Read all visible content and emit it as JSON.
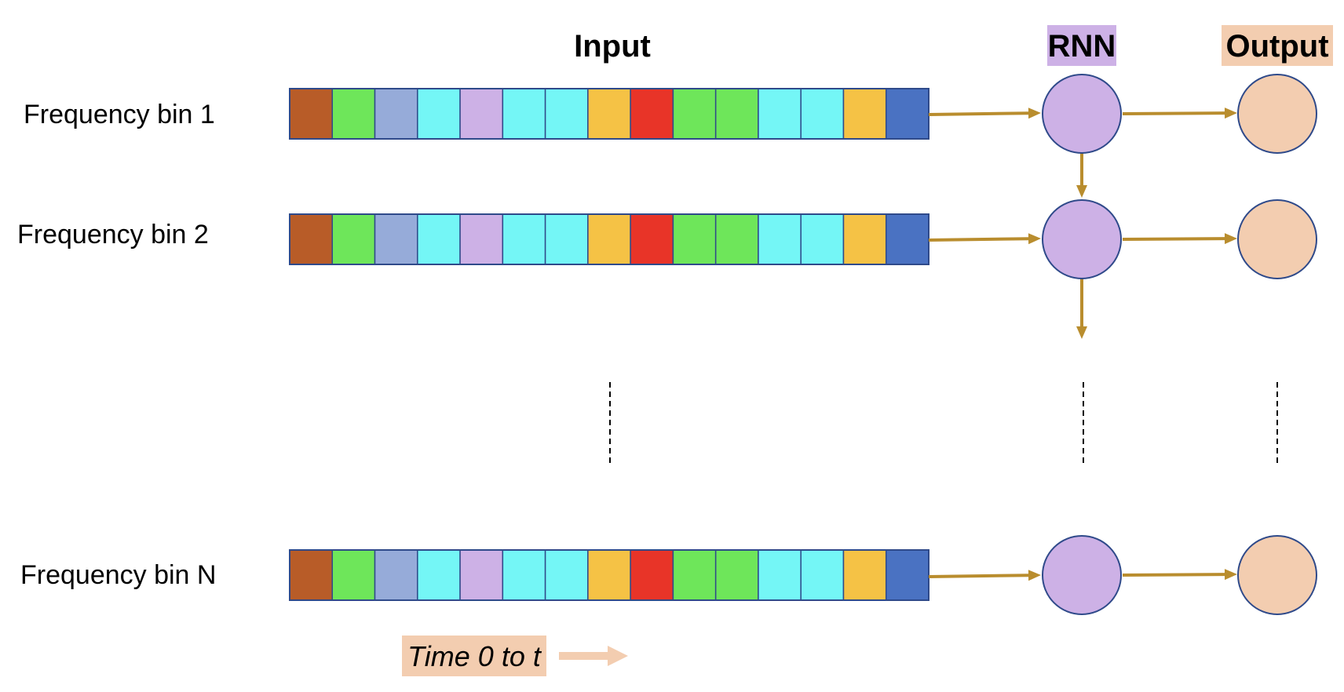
{
  "headers": {
    "input": "Input",
    "rnn": "RNN",
    "output": "Output"
  },
  "rows": [
    {
      "label": "Frequency bin 1"
    },
    {
      "label": "Frequency bin 2"
    },
    {
      "label": "Frequency bin N"
    }
  ],
  "time_label": "Time 0 to t",
  "colors": {
    "cells": [
      "#b85c28",
      "#6ee65a",
      "#96abd9",
      "#74f6f6",
      "#cdb1e6",
      "#74f6f6",
      "#74f6f6",
      "#f5c245",
      "#e83428",
      "#6ee65a",
      "#6ee65a",
      "#74f6f6",
      "#74f6f6",
      "#f5c245",
      "#4a72c2"
    ],
    "cell_border": "#2f4a8a",
    "rnn_node": "#cdb1e6",
    "output_node": "#f3cdb0",
    "node_border": "#2f4a8a",
    "arrow": "#b98d2e",
    "rnn_header_bg": "#cdb1e6",
    "output_header_bg": "#f3cdb0",
    "time_bg": "#f3cdb0",
    "time_arrow": "#f3cdb0",
    "dashes": "#000000"
  }
}
